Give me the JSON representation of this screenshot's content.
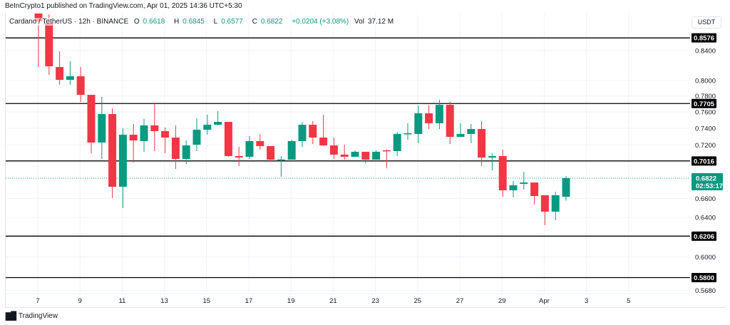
{
  "header": {
    "published": "BeInCrypto1 published on TradingView.com, Apr 01, 2025 14:36 UTC+5:30",
    "symbol": "Cardano / TetherUS · 12h · BINANCE",
    "open_label": "O",
    "open": "0.6618",
    "high_label": "H",
    "high": "0.6845",
    "low_label": "L",
    "low": "0.6577",
    "close_label": "C",
    "close": "0.6822",
    "change": "+0.0204 (+3.08%)",
    "vol_label": "Vol",
    "vol": "37.12 M"
  },
  "price_axis": {
    "unit": "USDT"
  },
  "footer": {
    "brand": "TradingView",
    "logo_icon": "tradingview-logo-icon"
  },
  "chart_data": {
    "type": "candlestick",
    "interval": "12h",
    "y_scale": "log",
    "ylim": [
      0.556,
      0.905
    ],
    "colors": {
      "up": "#089981",
      "down": "#f23645",
      "level_line": "#000000",
      "current_price": "#089981"
    },
    "x_tick_labels": [
      "7",
      "9",
      "11",
      "13",
      "15",
      "17",
      "19",
      "21",
      "23",
      "25",
      "27",
      "29",
      "Apr",
      "3",
      "5"
    ],
    "y_tick_labels": [
      "0.8400",
      "0.8000",
      "0.7800",
      "0.7600",
      "0.7400",
      "0.7200",
      "0.6600",
      "0.6400",
      "0.6000",
      "0.5680"
    ],
    "horizontal_levels": [
      "0.8576",
      "0.7705",
      "0.7016",
      "0.6206",
      "0.5800"
    ],
    "current_price": {
      "value": "0.6822",
      "countdown": "02:53:17"
    },
    "candles_ohlc": [
      [
        0.8934,
        0.907,
        0.8178,
        0.881
      ],
      [
        0.879,
        0.8913,
        0.8074,
        0.8188
      ],
      [
        0.8178,
        0.839,
        0.7944,
        0.8009
      ],
      [
        0.8009,
        0.8255,
        0.7944,
        0.8056
      ],
      [
        0.8056,
        0.8178,
        0.7725,
        0.7815
      ],
      [
        0.7815,
        0.7815,
        0.7105,
        0.723
      ],
      [
        0.723,
        0.7788,
        0.7039,
        0.7574
      ],
      [
        0.7574,
        0.7645,
        0.6603,
        0.6727
      ],
      [
        0.6727,
        0.74,
        0.6497,
        0.7323
      ],
      [
        0.7323,
        0.7452,
        0.6998,
        0.7255
      ],
      [
        0.7247,
        0.7513,
        0.7122,
        0.7435
      ],
      [
        0.7435,
        0.7716,
        0.713,
        0.7366
      ],
      [
        0.7366,
        0.7409,
        0.7105,
        0.7289
      ],
      [
        0.7289,
        0.7435,
        0.6926,
        0.7039
      ],
      [
        0.7039,
        0.7255,
        0.6982,
        0.7196
      ],
      [
        0.7205,
        0.7521,
        0.713,
        0.7383
      ],
      [
        0.7383,
        0.7565,
        0.7323,
        0.7443
      ],
      [
        0.7443,
        0.761,
        0.7435,
        0.7478
      ],
      [
        0.7478,
        0.7478,
        0.7064,
        0.7072
      ],
      [
        0.7072,
        0.718,
        0.6958,
        0.7055
      ],
      [
        0.7064,
        0.7306,
        0.7039,
        0.7247
      ],
      [
        0.7247,
        0.7332,
        0.7147,
        0.7188
      ],
      [
        0.7188,
        0.7188,
        0.7006,
        0.7031
      ],
      [
        0.7031,
        0.7072,
        0.6838,
        0.7033
      ],
      [
        0.7031,
        0.7264,
        0.7031,
        0.7247
      ],
      [
        0.7247,
        0.7478,
        0.718,
        0.7443
      ],
      [
        0.7443,
        0.7487,
        0.7213,
        0.7289
      ],
      [
        0.7289,
        0.7565,
        0.7188,
        0.7196
      ],
      [
        0.7196,
        0.7289,
        0.7039,
        0.7089
      ],
      [
        0.7089,
        0.7205,
        0.7031,
        0.7064
      ],
      [
        0.7064,
        0.7139,
        0.7064,
        0.7122
      ],
      [
        0.7122,
        0.7122,
        0.699,
        0.7031
      ],
      [
        0.7031,
        0.7139,
        0.7031,
        0.7122
      ],
      [
        0.7139,
        0.7147,
        0.6933,
        0.713
      ],
      [
        0.713,
        0.7357,
        0.7072,
        0.7332
      ],
      [
        0.7332,
        0.7461,
        0.7264,
        0.734
      ],
      [
        0.7332,
        0.7681,
        0.7221,
        0.7583
      ],
      [
        0.7583,
        0.7689,
        0.7391,
        0.7461
      ],
      [
        0.7461,
        0.7752,
        0.7391,
        0.7689
      ],
      [
        0.7689,
        0.7725,
        0.7213,
        0.7297
      ],
      [
        0.7297,
        0.7461,
        0.7297,
        0.7332
      ],
      [
        0.7332,
        0.7452,
        0.7221,
        0.7391
      ],
      [
        0.7391,
        0.7487,
        0.6958,
        0.7055
      ],
      [
        0.7055,
        0.7105,
        0.6909,
        0.7072
      ],
      [
        0.7072,
        0.7147,
        0.6618,
        0.6688
      ],
      [
        0.6688,
        0.679,
        0.6611,
        0.6744
      ],
      [
        0.6759,
        0.6893,
        0.6696,
        0.6774
      ],
      [
        0.6774,
        0.6774,
        0.6534,
        0.6626
      ],
      [
        0.6634,
        0.6634,
        0.6318,
        0.6459
      ],
      [
        0.6459,
        0.6673,
        0.6369,
        0.6634
      ],
      [
        0.6618,
        0.6845,
        0.6577,
        0.6822
      ]
    ]
  }
}
